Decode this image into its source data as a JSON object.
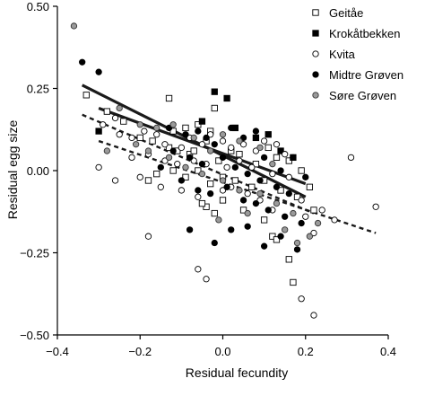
{
  "chart_data": {
    "type": "scatter",
    "xlabel": "Residual fecundity",
    "ylabel": "Residual egg size",
    "xlim": [
      -0.4,
      0.4
    ],
    "ylim": [
      -0.5,
      0.5
    ],
    "xticks": [
      -0.4,
      -0.2,
      0.0,
      0.2,
      0.4
    ],
    "yticks": [
      -0.5,
      -0.25,
      0.0,
      0.25,
      0.5
    ],
    "xtick_labels": [
      "−0.4",
      "−0.2",
      "0.0",
      "0.2",
      "0.4"
    ],
    "ytick_labels": [
      "−0.50",
      "−0.25",
      "0.00",
      "0.25",
      "0.50"
    ],
    "legend_position": "top-right",
    "series": [
      {
        "name": "Geitåe",
        "marker": "square-open",
        "points": [
          [
            -0.33,
            0.23
          ],
          [
            -0.13,
            0.22
          ],
          [
            -0.02,
            0.19
          ],
          [
            -0.28,
            0.18
          ],
          [
            -0.24,
            0.15
          ],
          [
            -0.2,
            0.1
          ],
          [
            -0.17,
            0.09
          ],
          [
            -0.12,
            0.12
          ],
          [
            -0.09,
            0.13
          ],
          [
            -0.06,
            0.14
          ],
          [
            -0.03,
            0.12
          ],
          [
            -0.13,
            0.07
          ],
          [
            -0.11,
            0.06
          ],
          [
            -0.08,
            0.05
          ],
          [
            -0.04,
            0.09
          ],
          [
            -0.01,
            0.03
          ],
          [
            0.02,
            0.06
          ],
          [
            0.04,
            0.05
          ],
          [
            0.08,
            0.02
          ],
          [
            0.11,
            0.07
          ],
          [
            0.13,
            0.04
          ],
          [
            0.16,
            0.03
          ],
          [
            0.19,
            0.0
          ],
          [
            -0.16,
            -0.01
          ],
          [
            -0.12,
            0.0
          ],
          [
            -0.09,
            -0.02
          ],
          [
            -0.06,
            0.0
          ],
          [
            -0.03,
            -0.04
          ],
          [
            0.0,
            -0.02
          ],
          [
            0.03,
            -0.03
          ],
          [
            0.07,
            -0.05
          ],
          [
            0.1,
            -0.03
          ],
          [
            0.14,
            -0.06
          ],
          [
            0.18,
            -0.08
          ],
          [
            0.21,
            -0.05
          ],
          [
            0.22,
            -0.12
          ],
          [
            -0.04,
            -0.11
          ],
          [
            -0.02,
            -0.13
          ],
          [
            0.0,
            -0.09
          ],
          [
            0.05,
            -0.12
          ],
          [
            0.1,
            -0.15
          ],
          [
            0.12,
            -0.2
          ],
          [
            0.13,
            -0.21
          ],
          [
            0.16,
            -0.27
          ],
          [
            0.17,
            -0.34
          ],
          [
            -0.05,
            -0.1
          ],
          [
            -0.18,
            -0.03
          ],
          [
            -0.07,
            0.06
          ]
        ]
      },
      {
        "name": "Krokåtbekken",
        "marker": "square-filled",
        "points": [
          [
            -0.3,
            0.12
          ],
          [
            -0.02,
            0.24
          ],
          [
            0.01,
            0.22
          ],
          [
            -0.05,
            0.15
          ],
          [
            0.03,
            0.13
          ],
          [
            0.08,
            0.1
          ],
          [
            0.11,
            0.11
          ],
          [
            0.14,
            0.06
          ],
          [
            0.17,
            0.04
          ]
        ]
      },
      {
        "name": "Kvita",
        "marker": "circle-open",
        "points": [
          [
            -0.26,
            0.16
          ],
          [
            -0.22,
            0.1
          ],
          [
            -0.19,
            0.12
          ],
          [
            -0.16,
            0.11
          ],
          [
            -0.14,
            0.08
          ],
          [
            -0.1,
            0.07
          ],
          [
            -0.08,
            0.1
          ],
          [
            -0.05,
            0.08
          ],
          [
            -0.03,
            0.11
          ],
          [
            0.0,
            0.09
          ],
          [
            0.02,
            0.07
          ],
          [
            0.05,
            0.08
          ],
          [
            0.08,
            0.06
          ],
          [
            0.1,
            0.09
          ],
          [
            0.13,
            0.08
          ],
          [
            0.15,
            0.05
          ],
          [
            -0.22,
            0.04
          ],
          [
            -0.18,
            0.05
          ],
          [
            -0.14,
            0.03
          ],
          [
            -0.11,
            0.02
          ],
          [
            -0.07,
            0.03
          ],
          [
            -0.04,
            0.02
          ],
          [
            0.01,
            0.01
          ],
          [
            0.04,
            0.03
          ],
          [
            0.07,
            0.01
          ],
          [
            0.12,
            -0.01
          ],
          [
            0.16,
            -0.02
          ],
          [
            -0.3,
            0.01
          ],
          [
            -0.26,
            -0.03
          ],
          [
            -0.2,
            -0.02
          ],
          [
            -0.15,
            -0.05
          ],
          [
            -0.1,
            -0.06
          ],
          [
            -0.06,
            -0.08
          ],
          [
            0.02,
            -0.05
          ],
          [
            0.06,
            -0.07
          ],
          [
            0.09,
            -0.09
          ],
          [
            0.12,
            -0.12
          ],
          [
            0.19,
            -0.09
          ],
          [
            0.2,
            -0.14
          ],
          [
            0.24,
            -0.12
          ],
          [
            0.27,
            -0.15
          ],
          [
            0.22,
            -0.19
          ],
          [
            -0.18,
            -0.2
          ],
          [
            -0.06,
            -0.3
          ],
          [
            -0.04,
            -0.33
          ],
          [
            0.19,
            -0.39
          ],
          [
            0.22,
            -0.44
          ],
          [
            0.37,
            -0.11
          ],
          [
            0.31,
            0.04
          ],
          [
            -0.29,
            0.14
          ],
          [
            -0.25,
            0.11
          ],
          [
            0.0,
            -0.06
          ]
        ]
      },
      {
        "name": "Midtre Grøven",
        "marker": "circle-filled",
        "points": [
          [
            -0.34,
            0.33
          ],
          [
            -0.3,
            0.3
          ],
          [
            -0.13,
            0.13
          ],
          [
            -0.09,
            0.11
          ],
          [
            -0.06,
            0.12
          ],
          [
            -0.04,
            0.1
          ],
          [
            -0.02,
            0.08
          ],
          [
            0.02,
            0.13
          ],
          [
            0.05,
            0.1
          ],
          [
            0.08,
            0.12
          ],
          [
            0.1,
            0.04
          ],
          [
            0.14,
            0.0
          ],
          [
            0.17,
            0.04
          ],
          [
            0.2,
            -0.02
          ],
          [
            -0.12,
            0.06
          ],
          [
            -0.08,
            0.04
          ],
          [
            -0.05,
            0.02
          ],
          [
            0.0,
            0.04
          ],
          [
            0.03,
            0.01
          ],
          [
            0.06,
            -0.01
          ],
          [
            0.09,
            -0.03
          ],
          [
            0.13,
            -0.05
          ],
          [
            0.16,
            -0.07
          ],
          [
            -0.15,
            0.01
          ],
          [
            -0.1,
            -0.03
          ],
          [
            -0.06,
            -0.06
          ],
          [
            -0.03,
            -0.07
          ],
          [
            0.01,
            -0.05
          ],
          [
            0.05,
            -0.09
          ],
          [
            0.08,
            -0.1
          ],
          [
            0.11,
            -0.12
          ],
          [
            0.15,
            -0.14
          ],
          [
            0.19,
            -0.16
          ],
          [
            0.02,
            -0.18
          ],
          [
            0.06,
            -0.17
          ],
          [
            -0.02,
            -0.22
          ],
          [
            0.1,
            -0.23
          ],
          [
            0.14,
            -0.2
          ],
          [
            0.18,
            -0.24
          ],
          [
            -0.08,
            -0.18
          ]
        ]
      },
      {
        "name": "Søre Grøven",
        "marker": "circle-gray",
        "points": [
          [
            -0.36,
            0.44
          ],
          [
            -0.25,
            0.19
          ],
          [
            -0.2,
            0.14
          ],
          [
            -0.16,
            0.13
          ],
          [
            -0.12,
            0.14
          ],
          [
            -0.07,
            0.1
          ],
          [
            -0.03,
            0.06
          ],
          [
            0.0,
            0.11
          ],
          [
            0.04,
            0.09
          ],
          [
            0.09,
            0.07
          ],
          [
            0.12,
            0.02
          ],
          [
            -0.18,
            0.06
          ],
          [
            -0.13,
            0.04
          ],
          [
            -0.09,
            0.01
          ],
          [
            -0.05,
            -0.01
          ],
          [
            0.0,
            -0.03
          ],
          [
            0.04,
            -0.06
          ],
          [
            0.09,
            -0.07
          ],
          [
            0.13,
            -0.1
          ],
          [
            0.17,
            -0.13
          ],
          [
            -0.28,
            0.06
          ],
          [
            -0.21,
            0.08
          ],
          [
            0.21,
            -0.2
          ],
          [
            0.06,
            -0.13
          ],
          [
            0.15,
            -0.18
          ],
          [
            0.18,
            -0.22
          ],
          [
            -0.01,
            -0.15
          ],
          [
            0.23,
            -0.16
          ]
        ]
      }
    ],
    "regression_lines": [
      {
        "style": "solid",
        "x": [
          -0.34,
          0.2
        ],
        "y": [
          0.26,
          -0.08
        ]
      },
      {
        "style": "solid",
        "x": [
          -0.3,
          0.2
        ],
        "y": [
          0.19,
          -0.04
        ]
      },
      {
        "style": "dashed",
        "x": [
          -0.34,
          0.22
        ],
        "y": [
          0.17,
          -0.13
        ]
      },
      {
        "style": "dashed",
        "x": [
          -0.3,
          0.37
        ],
        "y": [
          0.09,
          -0.19
        ]
      }
    ]
  }
}
